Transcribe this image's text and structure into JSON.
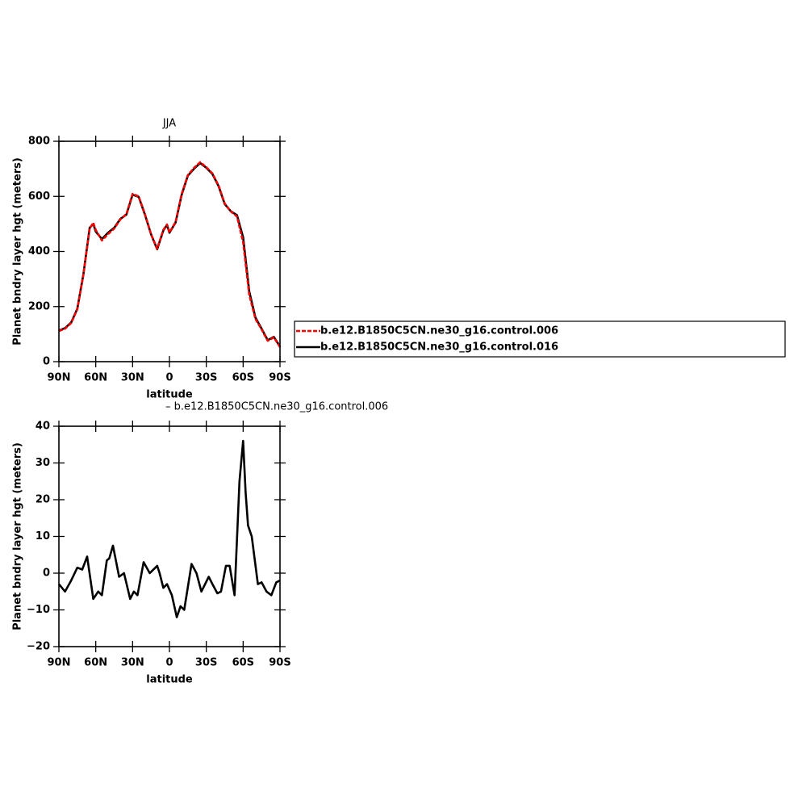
{
  "chart_data": [
    {
      "type": "line",
      "title": "JJA",
      "ylabel": "Planet bndry layer hgt (meters)",
      "xlabel": "latitude",
      "xlim": [
        90,
        -90
      ],
      "ylim": [
        0,
        800
      ],
      "xticks": [
        {
          "value": 90,
          "label": "90N"
        },
        {
          "value": 60,
          "label": "60N"
        },
        {
          "value": 30,
          "label": "30N"
        },
        0,
        {
          "value": -30,
          "label": "30S"
        },
        {
          "value": -60,
          "label": "60S"
        },
        {
          "value": -90,
          "label": "90S"
        }
      ],
      "yticks": [
        0,
        200,
        400,
        600,
        800
      ],
      "x": [
        90,
        85,
        80,
        75,
        70,
        65,
        62,
        60,
        55,
        50,
        45,
        40,
        35,
        30,
        25,
        20,
        15,
        10,
        5,
        2,
        0,
        -5,
        -10,
        -15,
        -20,
        -25,
        -30,
        -35,
        -40,
        -45,
        -50,
        -55,
        -60,
        -65,
        -70,
        -75,
        -80,
        -85,
        -90
      ],
      "series": [
        {
          "name": "b.e12.B1850C5CN.ne30_g16.control.006",
          "color": "#ff0000",
          "dashed": true,
          "values": [
            111,
            120,
            140,
            190,
            316,
            483,
            504,
            478,
            440,
            463,
            483,
            516,
            536,
            609,
            600,
            536,
            463,
            410,
            478,
            498,
            469,
            507,
            609,
            677,
            703,
            724,
            706,
            683,
            639,
            574,
            545,
            527,
            434,
            243,
            155,
            117,
            76,
            88,
            53
          ]
        },
        {
          "name": "b.e12.B1850C5CN.ne30_g16.control.016",
          "color": "#000000",
          "dashed": false,
          "values": [
            113,
            122,
            142,
            192,
            318,
            486,
            500,
            472,
            445,
            468,
            486,
            518,
            534,
            606,
            598,
            534,
            462,
            408,
            476,
            496,
            468,
            505,
            606,
            675,
            700,
            721,
            704,
            681,
            637,
            572,
            546,
            532,
            452,
            255,
            160,
            120,
            78,
            90,
            55
          ]
        }
      ]
    },
    {
      "type": "line",
      "subtitle": "– b.e12.B1850C5CN.ne30_g16.control.006",
      "ylabel": "Planet bndry layer hgt (meters)",
      "xlabel": "latitude",
      "xlim": [
        90,
        -90
      ],
      "ylim": [
        -20,
        40
      ],
      "xticks": [
        {
          "value": 90,
          "label": "90N"
        },
        {
          "value": 60,
          "label": "60N"
        },
        {
          "value": 30,
          "label": "30N"
        },
        0,
        {
          "value": -30,
          "label": "30S"
        },
        {
          "value": -60,
          "label": "60S"
        },
        {
          "value": -90,
          "label": "90S"
        }
      ],
      "yticks": [
        {
          "value": -20,
          "label": "−20"
        },
        {
          "value": -10,
          "label": "−10"
        },
        0,
        10,
        20,
        30,
        40
      ],
      "x": [
        90,
        85,
        80,
        75,
        71,
        67,
        62,
        58,
        55,
        51,
        49,
        46,
        41,
        37,
        32,
        29,
        26,
        21,
        16,
        10,
        8,
        5,
        2,
        -2,
        -6,
        -9,
        -12,
        -18,
        -22,
        -26,
        -32,
        -35,
        -39,
        -42,
        -46,
        -49,
        -53,
        -57,
        -60,
        -62,
        -64,
        -67,
        -72,
        -75,
        -79,
        -83,
        -87,
        -90
      ],
      "series": [
        {
          "color": "#000000",
          "values": [
            -3,
            -5,
            -2,
            1.5,
            1,
            4.5,
            -7,
            -5,
            -6,
            3.5,
            4,
            7.5,
            -1,
            0,
            -7,
            -5,
            -6,
            3,
            0,
            2,
            0,
            -4,
            -3,
            -6,
            -12,
            -9,
            -10,
            2.5,
            0,
            -5,
            -1,
            -3,
            -5.5,
            -5,
            2,
            2,
            -6,
            25,
            36,
            22,
            13,
            10,
            -3,
            -2.5,
            -5,
            -6,
            -2.5,
            -2
          ]
        }
      ]
    }
  ]
}
